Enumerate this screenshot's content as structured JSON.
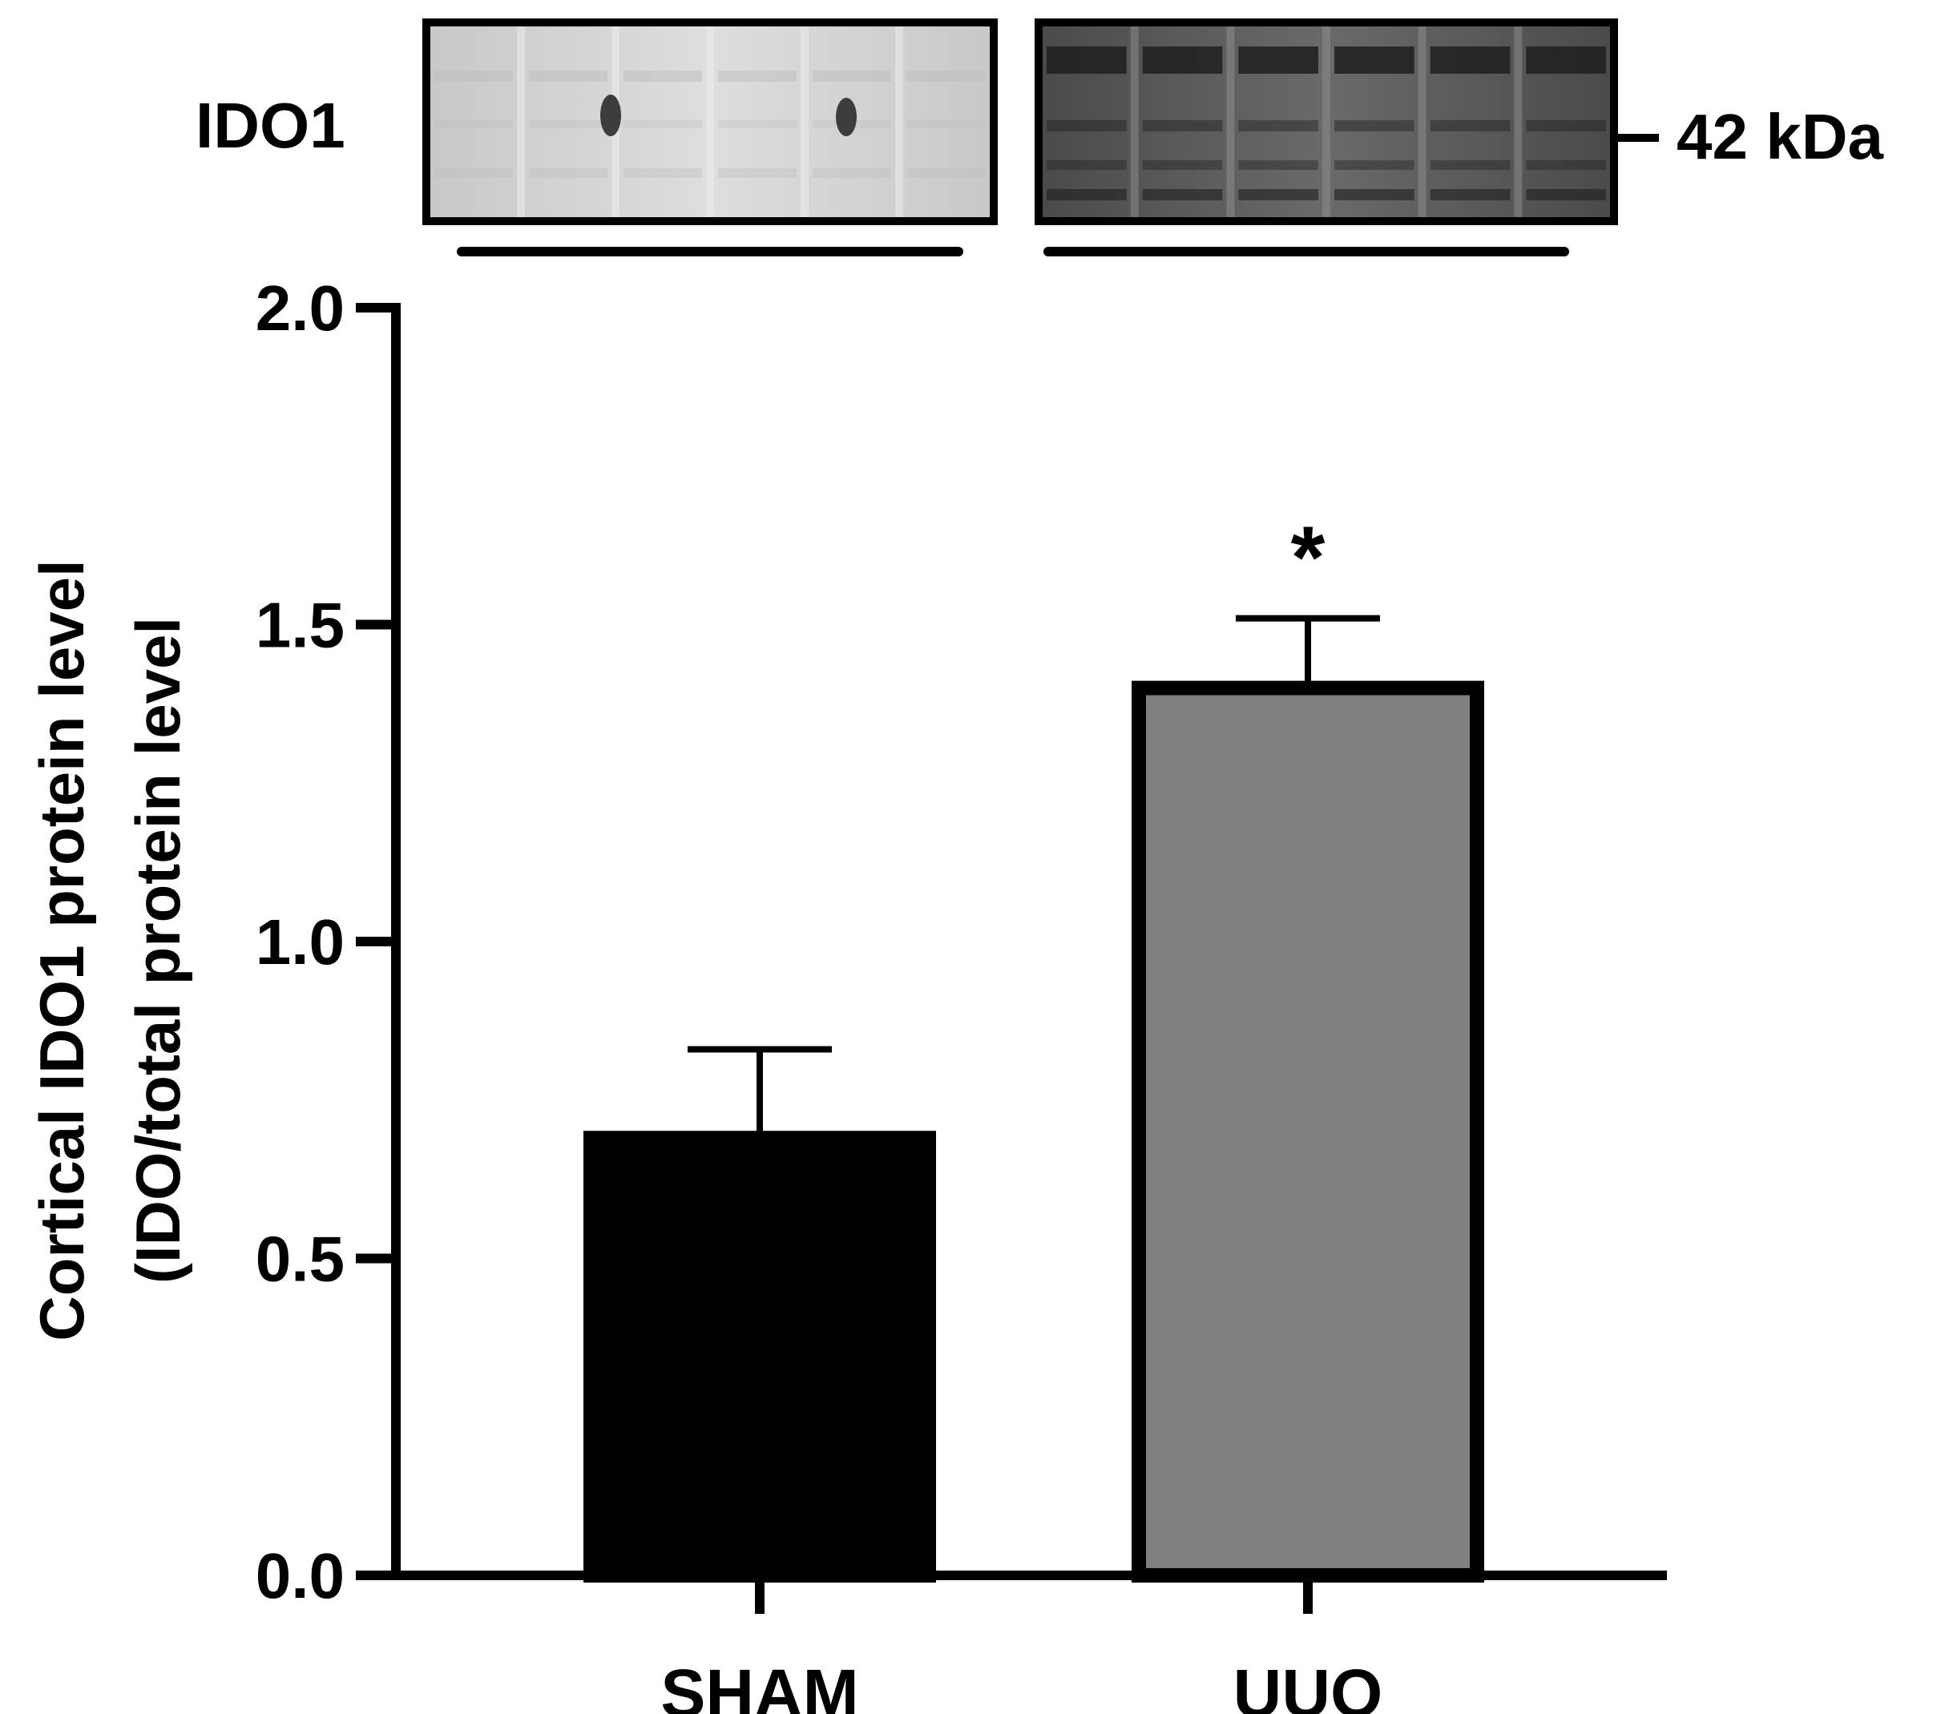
{
  "blot": {
    "protein_label": "IDO1",
    "marker_label": "42 kDa",
    "left_panel_lanes": 6,
    "right_panel_lanes": 6,
    "left_panel_tone": "#d4d4d4",
    "right_panel_tone": "#5a5a5a"
  },
  "chart_data": {
    "type": "bar",
    "categories": [
      "SHAM",
      "UUO"
    ],
    "values": [
      0.69,
      1.4
    ],
    "error_upper": [
      0.83,
      1.51
    ],
    "significance": [
      "",
      "*"
    ],
    "colors": [
      "#000000",
      "#808080"
    ],
    "ylabel_line1": "Cortical IDO1 protein level",
    "ylabel_line2": "(IDO/total protein level",
    "xlabel": "",
    "ylim": [
      0,
      2.0
    ],
    "yticks": [
      0.0,
      0.5,
      1.0,
      1.5,
      2.0
    ],
    "ytick_labels": [
      "0.0",
      "0.5",
      "1.0",
      "1.5",
      "2.0"
    ],
    "grid": false
  }
}
